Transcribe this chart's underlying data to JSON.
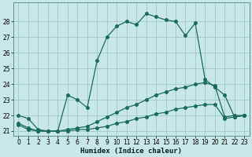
{
  "xlabel": "Humidex (Indice chaleur)",
  "bg_color": "#c8e8e8",
  "grid_color": "#a0c8c8",
  "line_color": "#1a6b5a",
  "xlim": [
    -0.5,
    23.5
  ],
  "ylim": [
    20.7,
    29.2
  ],
  "yticks": [
    21,
    22,
    23,
    24,
    25,
    26,
    27,
    28
  ],
  "xticks": [
    0,
    1,
    2,
    3,
    4,
    5,
    6,
    7,
    8,
    9,
    10,
    11,
    12,
    13,
    14,
    15,
    16,
    17,
    18,
    19,
    20,
    21,
    22,
    23
  ],
  "line_main_x": [
    0,
    1,
    2,
    3,
    4,
    5,
    6,
    7,
    8,
    9,
    10,
    11,
    12,
    13,
    14,
    15,
    16,
    17,
    18,
    19,
    20,
    21,
    22,
    23
  ],
  "line_main_y": [
    22.0,
    21.8,
    21.1,
    21.0,
    21.0,
    23.3,
    23.0,
    22.5,
    25.5,
    27.0,
    27.7,
    28.0,
    27.8,
    28.5,
    28.3,
    28.1,
    28.0,
    27.1,
    27.9,
    24.3,
    23.8,
    23.3,
    21.9,
    22.0
  ],
  "line_mid_x": [
    0,
    1,
    2,
    3,
    4,
    5,
    6,
    7,
    8,
    9,
    10,
    11,
    12,
    13,
    14,
    15,
    16,
    17,
    18,
    19,
    20,
    21,
    22,
    23
  ],
  "line_mid_y": [
    21.5,
    21.2,
    21.0,
    21.0,
    21.0,
    21.1,
    21.2,
    21.3,
    21.6,
    21.9,
    22.2,
    22.5,
    22.7,
    23.0,
    23.3,
    23.5,
    23.7,
    23.8,
    24.0,
    24.1,
    23.9,
    21.9,
    22.0,
    22.0
  ],
  "line_low_x": [
    0,
    1,
    2,
    3,
    4,
    5,
    6,
    7,
    8,
    9,
    10,
    11,
    12,
    13,
    14,
    15,
    16,
    17,
    18,
    19,
    20,
    21,
    22,
    23
  ],
  "line_low_y": [
    21.4,
    21.1,
    21.0,
    21.0,
    21.0,
    21.0,
    21.1,
    21.1,
    21.2,
    21.3,
    21.5,
    21.6,
    21.8,
    21.9,
    22.1,
    22.2,
    22.4,
    22.5,
    22.6,
    22.7,
    22.7,
    21.8,
    21.9,
    22.0
  ],
  "marker_size": 2.5,
  "lw": 0.9,
  "tick_fontsize": 5.5,
  "xlabel_fontsize": 6.5
}
